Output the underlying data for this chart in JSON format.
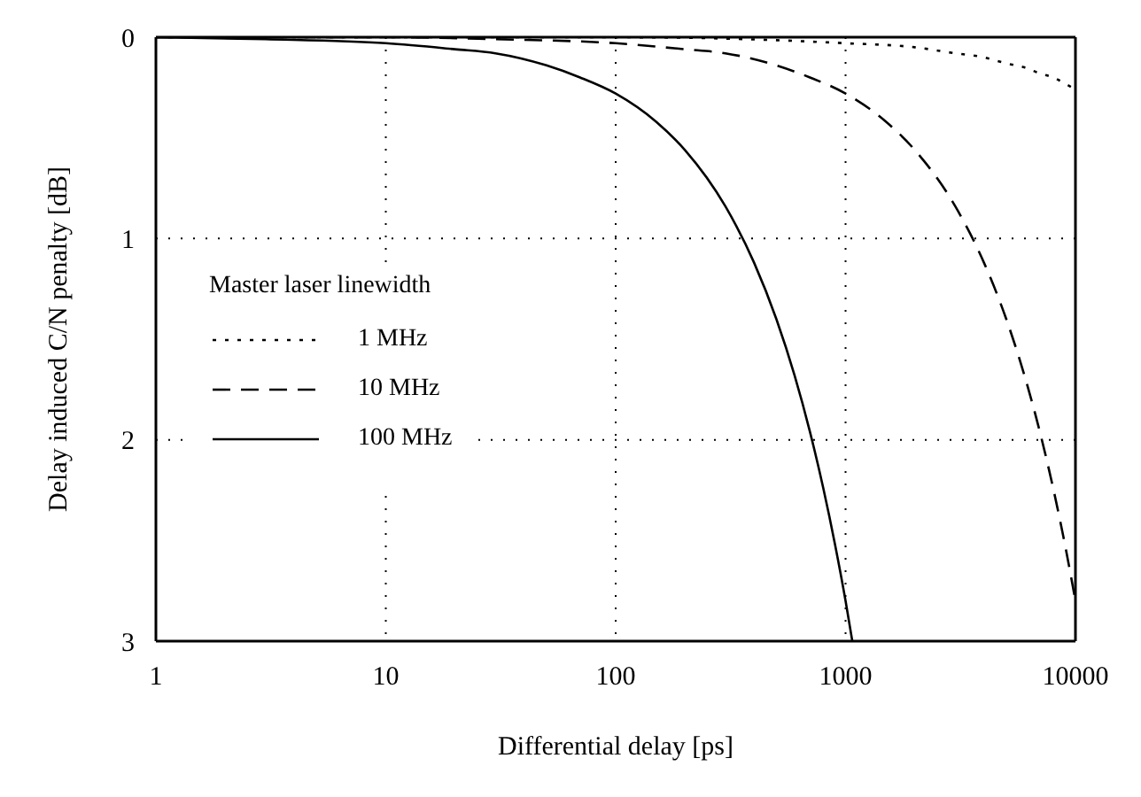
{
  "chart_data": {
    "type": "line",
    "xlabel": "Differential delay [ps]",
    "ylabel": "Delay induced C/N penalty [dB]",
    "legend_title": "Master laser linewidth",
    "log": "x",
    "xlim": [
      1,
      10000
    ],
    "xticks": [
      1,
      10,
      100,
      1000,
      10000
    ],
    "ylim": [
      3,
      0
    ],
    "yticks": [
      0,
      1,
      2,
      3
    ],
    "grid": true,
    "legend": "left",
    "marker": "none",
    "series": [
      {
        "name": "1 MHz",
        "color": "#000000",
        "line_style": "dotted",
        "x": [
          1,
          10,
          100,
          1000,
          2000,
          3000,
          4000,
          5000,
          6000,
          7000,
          8000,
          9000,
          10000
        ],
        "values": [
          0,
          0,
          0,
          0.03,
          0.05,
          0.08,
          0.1,
          0.13,
          0.15,
          0.18,
          0.2,
          0.23,
          0.26
        ]
      },
      {
        "name": "10 MHz",
        "color": "#000000",
        "line_style": "dashed",
        "x": [
          1,
          10,
          30,
          100,
          200,
          300,
          500,
          700,
          1000,
          1500,
          2000,
          3000,
          4000,
          5000,
          6000,
          7000,
          8000,
          9000,
          10000
        ],
        "values": [
          0,
          0,
          0.01,
          0.03,
          0.06,
          0.08,
          0.14,
          0.2,
          0.28,
          0.42,
          0.56,
          0.84,
          1.12,
          1.4,
          1.68,
          1.96,
          2.24,
          2.52,
          2.8
        ]
      },
      {
        "name": "100 MHz",
        "color": "#000000",
        "line_style": "solid",
        "x": [
          1,
          3,
          10,
          20,
          30,
          50,
          70,
          100,
          150,
          200,
          300,
          400,
          500,
          600,
          700,
          800,
          900,
          1000,
          1070
        ],
        "values": [
          0,
          0.01,
          0.03,
          0.06,
          0.08,
          0.14,
          0.2,
          0.28,
          0.42,
          0.56,
          0.84,
          1.12,
          1.4,
          1.68,
          1.96,
          2.24,
          2.52,
          2.8,
          3
        ]
      }
    ]
  }
}
